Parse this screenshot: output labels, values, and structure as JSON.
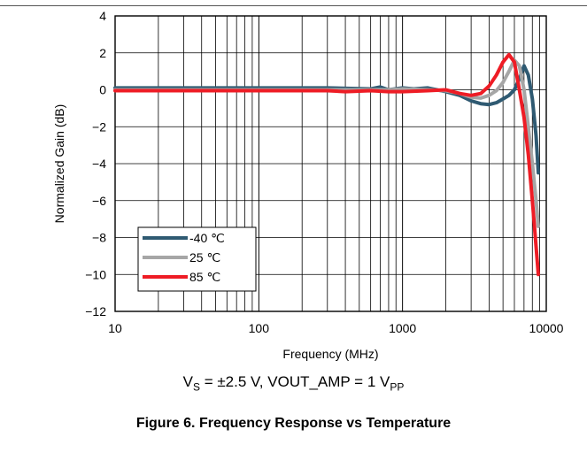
{
  "chart_data": {
    "type": "line",
    "title": "",
    "xlabel": "Frequency (MHz)",
    "ylabel": "Normalized Gain (dB)",
    "xscale": "log",
    "xlim": [
      10,
      10000
    ],
    "ylim": [
      -12,
      4
    ],
    "x_ticks": [
      "10",
      "100",
      "1000",
      "10000"
    ],
    "y_ticks": [
      "4",
      "2",
      "0",
      "−2",
      "−4",
      "−6",
      "−8",
      "−10",
      "−12"
    ],
    "grid": true,
    "legend_position": "bottom-left",
    "series": [
      {
        "name": "-40 ℃",
        "color": "#2f5a72",
        "x": [
          10,
          50,
          100,
          300,
          600,
          700,
          800,
          1000,
          1200,
          1500,
          2000,
          2500,
          3000,
          3500,
          4000,
          4500,
          5000,
          5500,
          6000,
          6500,
          7000,
          7500,
          8000,
          8500,
          8800
        ],
        "y": [
          0.1,
          0.1,
          0.1,
          0.1,
          0.05,
          0.15,
          0.0,
          0.1,
          0.05,
          0.1,
          -0.1,
          -0.3,
          -0.6,
          -0.75,
          -0.8,
          -0.7,
          -0.5,
          -0.3,
          0.0,
          0.6,
          1.3,
          0.8,
          -0.5,
          -2.5,
          -4.5
        ]
      },
      {
        "name": "25 ℃",
        "color": "#a6a6a6",
        "x": [
          10,
          50,
          100,
          300,
          600,
          800,
          1000,
          1500,
          2000,
          2500,
          3000,
          3500,
          4000,
          4500,
          5000,
          5500,
          6000,
          6500,
          7000,
          7500,
          8000,
          8500,
          8800
        ],
        "y": [
          0.0,
          0.0,
          0.0,
          0.0,
          0.0,
          0.0,
          0.05,
          0.0,
          -0.05,
          -0.2,
          -0.4,
          -0.45,
          -0.3,
          -0.05,
          0.4,
          1.0,
          1.6,
          1.3,
          0.0,
          -2.0,
          -4.0,
          -6.0,
          -7.4
        ]
      },
      {
        "name": "85 ℃",
        "color": "#ee1c25",
        "x": [
          10,
          50,
          100,
          300,
          400,
          600,
          800,
          1000,
          1500,
          2000,
          2500,
          3000,
          3500,
          4000,
          4500,
          5000,
          5500,
          6000,
          6500,
          7000,
          7500,
          8000,
          8500,
          8800
        ],
        "y": [
          -0.05,
          -0.05,
          -0.05,
          -0.05,
          -0.1,
          -0.05,
          -0.1,
          -0.1,
          -0.05,
          0.0,
          -0.2,
          -0.3,
          -0.2,
          0.2,
          0.8,
          1.5,
          1.9,
          1.5,
          0.0,
          -1.5,
          -3.5,
          -6.0,
          -8.5,
          -10.0
        ]
      }
    ]
  },
  "caption": {
    "conditions_prefix": "V",
    "conditions_sub1": "S",
    "conditions_mid": " = ±2.5 V, VOUT_AMP = 1 V",
    "conditions_sub2": "PP",
    "figure_title": "Figure 6. Frequency Response vs Temperature"
  }
}
